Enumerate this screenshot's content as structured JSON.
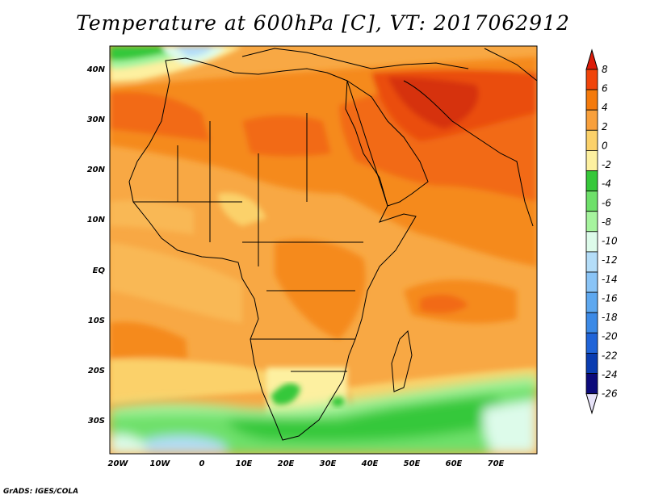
{
  "title": "Temperature at 600hPa [C], VT: 2017062912",
  "footer": "GrADS: IGES/COLA",
  "map": {
    "lat_labels": [
      "40N",
      "30N",
      "20N",
      "10N",
      "EQ",
      "10S",
      "20S",
      "30S"
    ],
    "lon_labels": [
      "20W",
      "10W",
      "0",
      "10E",
      "20E",
      "30E",
      "40E",
      "50E",
      "60E",
      "70E"
    ],
    "lon_range_deg": [
      -22,
      79
    ],
    "lat_range_deg": [
      -36,
      45
    ]
  },
  "colorbar": {
    "labels": [
      "8",
      "6",
      "4",
      "2",
      "0",
      "-2",
      "-4",
      "-6",
      "-8",
      "-10",
      "-12",
      "-14",
      "-16",
      "-18",
      "-20",
      "-22",
      "-24",
      "-26"
    ],
    "colors": [
      "#dc1c0a",
      "#f0440a",
      "#f47a0c",
      "#f8a03c",
      "#fbd16a",
      "#fdf0a0",
      "#36c83a",
      "#6ee06a",
      "#a6f49e",
      "#ddfbea",
      "#b4ddf8",
      "#8ac4f6",
      "#5ea8ef",
      "#3c8ae6",
      "#2064d8",
      "#0a3cb0",
      "#0c0a7a",
      "#e6e2f8"
    ]
  }
}
